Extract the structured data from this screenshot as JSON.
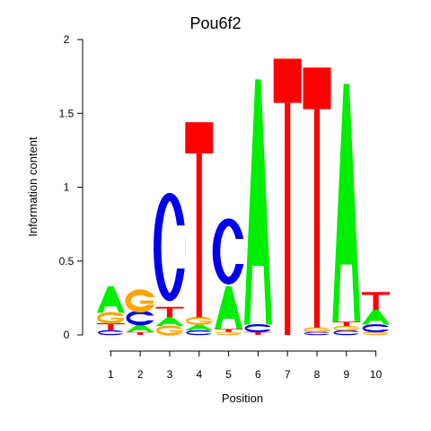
{
  "chart_data": {
    "type": "sequence-logo",
    "title": "Pou6f2",
    "xlabel": "Position",
    "ylabel": "Information content",
    "ylim": [
      0,
      2
    ],
    "yticks": [
      0,
      0.5,
      1,
      1.5,
      2
    ],
    "ytick_labels": [
      "0",
      "0.5",
      "1",
      "1.5",
      "2"
    ],
    "positions": [
      "1",
      "2",
      "3",
      "4",
      "5",
      "6",
      "7",
      "8",
      "9",
      "10"
    ],
    "colors": {
      "A": "#00ee00",
      "C": "#0000ee",
      "G": "#ffa500",
      "T": "#ff0000"
    },
    "stacks": [
      [
        {
          "base": "C",
          "height": 0.03
        },
        {
          "base": "T",
          "height": 0.05
        },
        {
          "base": "G",
          "height": 0.07
        },
        {
          "base": "A",
          "height": 0.18
        }
      ],
      [
        {
          "base": "T",
          "height": 0.02
        },
        {
          "base": "A",
          "height": 0.05
        },
        {
          "base": "C",
          "height": 0.09
        },
        {
          "base": "G",
          "height": 0.14
        }
      ],
      [
        {
          "base": "G",
          "height": 0.06
        },
        {
          "base": "A",
          "height": 0.06
        },
        {
          "base": "T",
          "height": 0.07
        },
        {
          "base": "C",
          "height": 0.81
        }
      ],
      [
        {
          "base": "C",
          "height": 0.03
        },
        {
          "base": "A",
          "height": 0.04
        },
        {
          "base": "G",
          "height": 0.05
        },
        {
          "base": "T",
          "height": 1.32
        }
      ],
      [
        {
          "base": "G",
          "height": 0.02
        },
        {
          "base": "T",
          "height": 0.02
        },
        {
          "base": "A",
          "height": 0.29
        },
        {
          "base": "C",
          "height": 0.47
        }
      ],
      [
        {
          "base": "T",
          "height": 0.02
        },
        {
          "base": "C",
          "height": 0.05
        },
        {
          "base": "A",
          "height": 1.66
        }
      ],
      [
        {
          "base": "T",
          "height": 1.87
        }
      ],
      [
        {
          "base": "C",
          "height": 0.02
        },
        {
          "base": "G",
          "height": 0.03
        },
        {
          "base": "T",
          "height": 1.76
        }
      ],
      [
        {
          "base": "C",
          "height": 0.03
        },
        {
          "base": "G",
          "height": 0.03
        },
        {
          "base": "T",
          "height": 0.03
        },
        {
          "base": "A",
          "height": 1.61
        }
      ],
      [
        {
          "base": "G",
          "height": 0.02
        },
        {
          "base": "C",
          "height": 0.05
        },
        {
          "base": "A",
          "height": 0.1
        },
        {
          "base": "T",
          "height": 0.12
        }
      ]
    ]
  }
}
